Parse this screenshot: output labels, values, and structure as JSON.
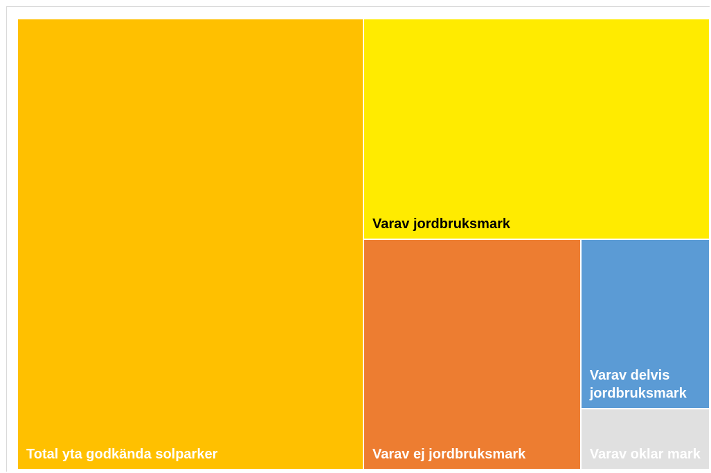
{
  "chart_data": {
    "type": "treemap",
    "items": [
      {
        "name": "Total yta godkända solparker",
        "value": 100,
        "color": "#ffc000",
        "label_color": "#ffffff"
      },
      {
        "name": "Varav jordbruksmark",
        "value": 49,
        "color": "#ffeb00",
        "label_color": "#000000"
      },
      {
        "name": "Varav ej jordbruksmark",
        "value": 32,
        "color": "#ed7d31",
        "label_color": "#ffffff"
      },
      {
        "name": "Varav delvis jordbruksmark",
        "value": 14,
        "color": "#5b9bd5",
        "label_color": "#ffffff"
      },
      {
        "name": "Varav oklar mark",
        "value": 5,
        "color": "#e0e0e0",
        "label_color": "#ffffff"
      }
    ]
  }
}
